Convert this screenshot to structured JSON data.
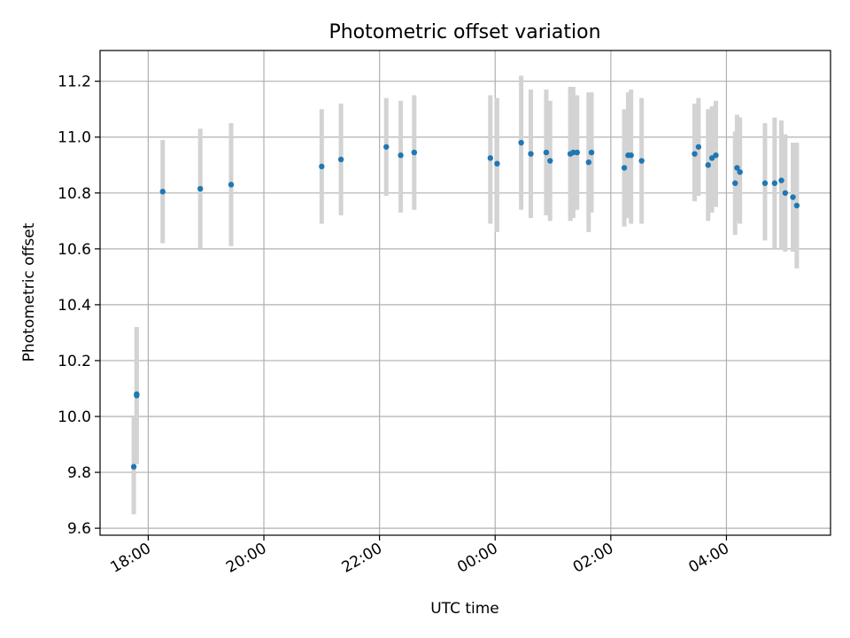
{
  "chart_data": {
    "type": "scatter",
    "title": "Photometric offset variation",
    "xlabel": "UTC time",
    "ylabel": "Photometric offset",
    "x_unit": "UTC time (HH:MM)",
    "xlim": [
      "17:10",
      "05:48"
    ],
    "ylim": [
      9.575,
      11.31
    ],
    "xticks": [
      "18:00",
      "20:00",
      "22:00",
      "00:00",
      "02:00",
      "04:00"
    ],
    "yticks": [
      9.6,
      9.8,
      10.0,
      10.2,
      10.4,
      10.6,
      10.8,
      11.0,
      11.2
    ],
    "grid": true,
    "marker_color": "#1f77b4",
    "errorbar_color": "#d3d3d3",
    "points": [
      {
        "x": "17:45",
        "y": 9.82,
        "err_low": 9.65,
        "err_high": 10.0
      },
      {
        "x": "17:48",
        "y": 10.08,
        "err_low": 9.83,
        "err_high": 10.32
      },
      {
        "x": "17:48",
        "y": 10.075,
        "err_low": 9.83,
        "err_high": 10.32
      },
      {
        "x": "18:15",
        "y": 10.805,
        "err_low": 10.62,
        "err_high": 10.99
      },
      {
        "x": "18:54",
        "y": 10.815,
        "err_low": 10.6,
        "err_high": 11.03
      },
      {
        "x": "19:26",
        "y": 10.83,
        "err_low": 10.61,
        "err_high": 11.05
      },
      {
        "x": "21:00",
        "y": 10.895,
        "err_low": 10.69,
        "err_high": 11.1
      },
      {
        "x": "21:20",
        "y": 10.92,
        "err_low": 10.72,
        "err_high": 11.12
      },
      {
        "x": "22:07",
        "y": 10.965,
        "err_low": 10.79,
        "err_high": 11.14
      },
      {
        "x": "22:22",
        "y": 10.935,
        "err_low": 10.73,
        "err_high": 11.13
      },
      {
        "x": "22:36",
        "y": 10.945,
        "err_low": 10.74,
        "err_high": 11.15
      },
      {
        "x": "23:55",
        "y": 10.925,
        "err_low": 10.69,
        "err_high": 11.15
      },
      {
        "x": "00:02",
        "y": 10.905,
        "err_low": 10.66,
        "err_high": 11.14
      },
      {
        "x": "00:27",
        "y": 10.98,
        "err_low": 10.74,
        "err_high": 11.22
      },
      {
        "x": "00:37",
        "y": 10.94,
        "err_low": 10.71,
        "err_high": 11.17
      },
      {
        "x": "00:53",
        "y": 10.945,
        "err_low": 10.72,
        "err_high": 11.17
      },
      {
        "x": "00:57",
        "y": 10.915,
        "err_low": 10.7,
        "err_high": 11.13
      },
      {
        "x": "01:18",
        "y": 10.94,
        "err_low": 10.7,
        "err_high": 11.18
      },
      {
        "x": "01:21",
        "y": 10.945,
        "err_low": 10.71,
        "err_high": 11.18
      },
      {
        "x": "01:25",
        "y": 10.945,
        "err_low": 10.74,
        "err_high": 11.15
      },
      {
        "x": "01:37",
        "y": 10.91,
        "err_low": 10.66,
        "err_high": 11.16
      },
      {
        "x": "01:40",
        "y": 10.945,
        "err_low": 10.73,
        "err_high": 11.16
      },
      {
        "x": "02:14",
        "y": 10.89,
        "err_low": 10.68,
        "err_high": 11.1
      },
      {
        "x": "02:18",
        "y": 10.935,
        "err_low": 10.71,
        "err_high": 11.16
      },
      {
        "x": "02:21",
        "y": 10.935,
        "err_low": 10.69,
        "err_high": 11.17
      },
      {
        "x": "02:32",
        "y": 10.915,
        "err_low": 10.69,
        "err_high": 11.14
      },
      {
        "x": "03:27",
        "y": 10.94,
        "err_low": 10.77,
        "err_high": 11.12
      },
      {
        "x": "03:31",
        "y": 10.965,
        "err_low": 10.79,
        "err_high": 11.14
      },
      {
        "x": "03:41",
        "y": 10.9,
        "err_low": 10.7,
        "err_high": 11.1
      },
      {
        "x": "03:45",
        "y": 10.925,
        "err_low": 10.73,
        "err_high": 11.11
      },
      {
        "x": "03:49",
        "y": 10.935,
        "err_low": 10.75,
        "err_high": 11.13
      },
      {
        "x": "04:09",
        "y": 10.835,
        "err_low": 10.65,
        "err_high": 11.02
      },
      {
        "x": "04:11",
        "y": 10.89,
        "err_low": 10.7,
        "err_high": 11.08
      },
      {
        "x": "04:14",
        "y": 10.875,
        "err_low": 10.69,
        "err_high": 11.07
      },
      {
        "x": "04:40",
        "y": 10.835,
        "err_low": 10.63,
        "err_high": 11.05
      },
      {
        "x": "04:50",
        "y": 10.835,
        "err_low": 10.6,
        "err_high": 11.07
      },
      {
        "x": "04:57",
        "y": 10.845,
        "err_low": 10.6,
        "err_high": 11.06
      },
      {
        "x": "05:01",
        "y": 10.8,
        "err_low": 10.59,
        "err_high": 11.01
      },
      {
        "x": "05:09",
        "y": 10.785,
        "err_low": 10.59,
        "err_high": 10.98
      },
      {
        "x": "05:13",
        "y": 10.755,
        "err_low": 10.53,
        "err_high": 10.98
      }
    ]
  }
}
